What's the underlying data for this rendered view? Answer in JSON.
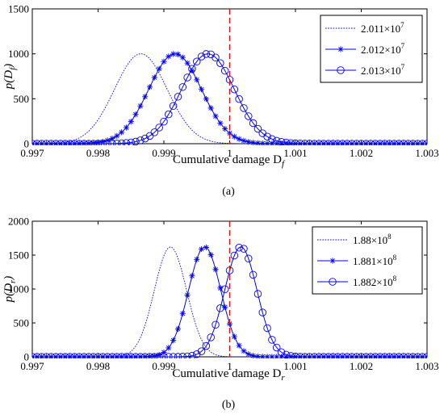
{
  "colors": {
    "series": "#0000ff",
    "threshold": "#ff0000",
    "axis": "#000000"
  },
  "chart_data": [
    {
      "type": "line",
      "caption": "(a)",
      "ylabel_main": "p(D",
      "ylabel_sub": "f",
      "ylabel_close": ")",
      "xlabel_main": "Cumulative damage D",
      "xlabel_sub": "f",
      "xlim": [
        0.997,
        1.003
      ],
      "ylim": [
        0,
        1500
      ],
      "xticks": [
        0.997,
        0.998,
        0.999,
        1,
        1.001,
        1.002,
        1.003
      ],
      "xtick_labels": [
        "0.997",
        "0.998",
        "0.999",
        "1",
        "1.001",
        "1.002",
        "1.003"
      ],
      "yticks": [
        0,
        500,
        1000,
        1500
      ],
      "ytick_labels": [
        "0",
        "500",
        "1000",
        "1500"
      ],
      "threshold_x": 1,
      "legend_position": "top-right",
      "series": [
        {
          "name_base": "2.011×10",
          "name_exp": "7",
          "marker": "none",
          "dash": "dotted",
          "mean": 0.99865,
          "std": 0.0004,
          "peak": 1000
        },
        {
          "name_base": "2.012×10",
          "name_exp": "7",
          "marker": "star",
          "dash": "solid",
          "mean": 0.99917,
          "std": 0.0004,
          "peak": 1000
        },
        {
          "name_base": "2.013×10",
          "name_exp": "7",
          "marker": "circle",
          "dash": "solid",
          "mean": 0.99967,
          "std": 0.0004,
          "peak": 1000
        }
      ]
    },
    {
      "type": "line",
      "caption": "(b)",
      "ylabel_main": "p(D",
      "ylabel_sub": "r",
      "ylabel_close": ")",
      "xlabel_main": "Cumulative damage D",
      "xlabel_sub": "r",
      "xlim": [
        0.997,
        1.003
      ],
      "ylim": [
        0,
        2000
      ],
      "xticks": [
        0.997,
        0.998,
        0.999,
        1,
        1.001,
        1.002,
        1.003
      ],
      "xtick_labels": [
        "0.997",
        "0.998",
        "0.999",
        "1",
        "1.001",
        "1.002",
        "1.003"
      ],
      "yticks": [
        0,
        500,
        1000,
        1500,
        2000
      ],
      "ytick_labels": [
        "0",
        "500",
        "1000",
        "1500",
        "2000"
      ],
      "threshold_x": 1,
      "legend_position": "top-right",
      "series": [
        {
          "name_base": "1.88×10",
          "name_exp": "8",
          "marker": "none",
          "dash": "dotted",
          "mean": 0.9991,
          "std": 0.000245,
          "peak": 1620
        },
        {
          "name_base": "1.881×10",
          "name_exp": "8",
          "marker": "star",
          "dash": "solid",
          "mean": 0.99962,
          "std": 0.000245,
          "peak": 1620
        },
        {
          "name_base": "1.882×10",
          "name_exp": "8",
          "marker": "circle",
          "dash": "solid",
          "mean": 1.00017,
          "std": 0.000245,
          "peak": 1620
        }
      ]
    }
  ]
}
